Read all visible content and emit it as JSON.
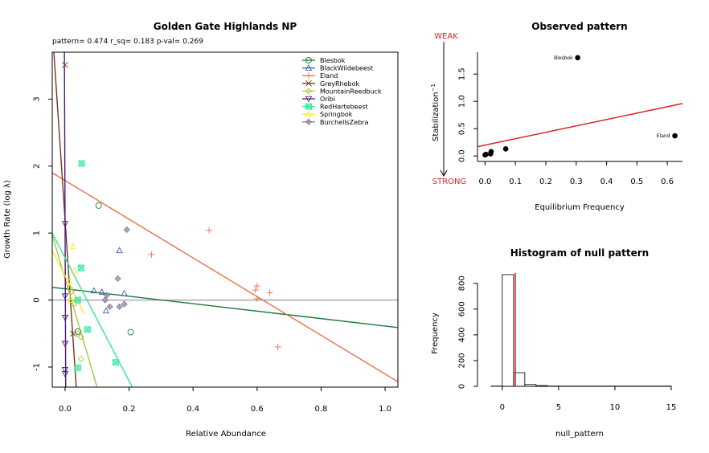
{
  "chart_data": [
    {
      "type": "scatter",
      "title": "Golden Gate Highlands NP",
      "subtitle": "pattern= 0.474 r_sq= 0.183 p-val= 0.269",
      "xlabel": "Relative Abundance",
      "ylabel": "Growth Rate (log  λ)",
      "xlim": [
        -0.04,
        1.04
      ],
      "ylim": [
        -1.3,
        3.7
      ],
      "xticks": [
        "0.0",
        "0.2",
        "0.4",
        "0.6",
        "0.8",
        "1.0"
      ],
      "yticks": [
        "-1",
        "0",
        "1",
        "2",
        "3"
      ],
      "xtick_values": [
        0,
        0.2,
        0.4,
        0.6,
        0.8,
        1.0
      ],
      "ytick_values": [
        -1,
        0,
        1,
        2,
        3
      ],
      "reference_line_y": 0,
      "legend_position": "top-right",
      "series": [
        {
          "name": "Blesbok",
          "color": "#1a7a3a",
          "marker": "circle",
          "points": [
            [
              0.105,
              1.41
            ],
            [
              0.205,
              -0.48
            ],
            [
              0.04,
              -0.47
            ]
          ],
          "fit": [
            [
              -0.04,
              0.19
            ],
            [
              1.04,
              -0.41
            ]
          ]
        },
        {
          "name": "BlackWildebeest",
          "color": "#3a5fb0",
          "marker": "triangle",
          "points": [
            [
              0.17,
              0.74
            ],
            [
              0.09,
              0.14
            ],
            [
              0.115,
              0.12
            ],
            [
              0.128,
              -0.16
            ],
            [
              0.185,
              0.1
            ]
          ],
          "fit": null
        },
        {
          "name": "Eland",
          "color": "#e8704a",
          "marker": "plus",
          "points": [
            [
              0.45,
              1.04
            ],
            [
              0.27,
              0.68
            ],
            [
              0.6,
              0.21
            ],
            [
              0.595,
              0.15
            ],
            [
              0.64,
              0.11
            ],
            [
              0.6,
              0.02
            ],
            [
              0.665,
              -0.7
            ]
          ],
          "fit": [
            [
              -0.04,
              1.9
            ],
            [
              1.04,
              -1.22
            ]
          ]
        },
        {
          "name": "GreyRhebok",
          "color": "#7a3320",
          "marker": "x",
          "points": [
            [
              0.0,
              3.51
            ],
            [
              0.025,
              -0.5
            ]
          ],
          "fit": [
            [
              -0.035,
              3.7
            ],
            [
              0.035,
              -1.3
            ]
          ]
        },
        {
          "name": "MountainReedbuck",
          "color": "#a8c840",
          "marker": "diamond",
          "points": [
            [
              0.02,
              0.12
            ],
            [
              0.03,
              -0.05
            ],
            [
              0.04,
              -0.5
            ],
            [
              0.05,
              -0.55
            ],
            [
              0.05,
              -0.88
            ],
            [
              0.015,
              0.18
            ]
          ],
          "fit": [
            [
              -0.04,
              0.97
            ],
            [
              0.1,
              -1.3
            ]
          ]
        },
        {
          "name": "Oribi",
          "color": "#4a1a7a",
          "marker": "triangle-down",
          "points": [
            [
              0.0,
              1.14
            ],
            [
              0.0,
              0.06
            ],
            [
              0.0,
              -0.26
            ],
            [
              0.0,
              -0.65
            ],
            [
              0.0,
              -1.04
            ],
            [
              0.0,
              -1.1
            ]
          ],
          "fit": [
            [
              -0.002,
              3.7
            ],
            [
              0.002,
              -1.3
            ]
          ]
        },
        {
          "name": "RedHartebeest",
          "color": "#2ee89a",
          "marker": "square-x",
          "points": [
            [
              0.052,
              2.04
            ],
            [
              0.05,
              0.48
            ],
            [
              0.04,
              0.0
            ],
            [
              0.07,
              -0.44
            ],
            [
              0.04,
              -1.01
            ],
            [
              0.158,
              -0.93
            ]
          ],
          "fit": [
            [
              -0.04,
              1.0
            ],
            [
              0.21,
              -1.3
            ]
          ]
        },
        {
          "name": "Springbok",
          "color": "#f0e840",
          "marker": "triangle",
          "points": [
            [
              0.025,
              0.8
            ],
            [
              0.03,
              0.44
            ],
            [
              0.02,
              0.0
            ],
            [
              0.015,
              0.28
            ]
          ],
          "fit": [
            [
              -0.04,
              0.74
            ],
            [
              0.06,
              -0.2
            ]
          ]
        },
        {
          "name": "BurchellsZebra",
          "color": "#8a7a9a",
          "marker": "diamond-plus",
          "points": [
            [
              0.193,
              1.05
            ],
            [
              0.165,
              0.32
            ],
            [
              0.13,
              0.07
            ],
            [
              0.14,
              -0.1
            ],
            [
              0.17,
              -0.1
            ],
            [
              0.185,
              -0.06
            ],
            [
              0.125,
              0.0
            ]
          ],
          "fit": null
        }
      ]
    },
    {
      "type": "scatter",
      "title": "Observed pattern",
      "xlabel": "Equilibrium Frequency",
      "ylabel": "Stabilization",
      "ylabel_superscript": "−1",
      "xlim": [
        -0.025,
        0.65
      ],
      "ylim": [
        -0.1,
        1.9
      ],
      "xticks": [
        "0.0",
        "0.1",
        "0.2",
        "0.3",
        "0.4",
        "0.5",
        "0.6"
      ],
      "xtick_values": [
        0,
        0.1,
        0.2,
        0.3,
        0.4,
        0.5,
        0.6
      ],
      "yticks": [
        "0.0",
        "0.5",
        "1.0",
        "1.5"
      ],
      "ytick_values": [
        0,
        0.5,
        1.0,
        1.5
      ],
      "weak_label": "WEAK",
      "strong_label": "STRONG",
      "points": [
        {
          "x": 0.305,
          "y": 1.8,
          "label": "Blesbok"
        },
        {
          "x": 0.625,
          "y": 0.37,
          "label": "Eland"
        },
        {
          "x": 0.068,
          "y": 0.13,
          "label": ""
        },
        {
          "x": 0.02,
          "y": 0.08,
          "label": ""
        },
        {
          "x": 0.018,
          "y": 0.04,
          "label": ""
        },
        {
          "x": 0.003,
          "y": 0.03,
          "label": ""
        },
        {
          "x": 0.0,
          "y": 0.02,
          "label": ""
        }
      ],
      "fit": [
        [
          -0.025,
          0.17
        ],
        [
          0.65,
          0.96
        ]
      ],
      "fit_color": "#dd2222"
    },
    {
      "type": "histogram",
      "title": "Histogram of null pattern",
      "xlabel": "null_pattern",
      "ylabel": "Frequency",
      "xlim": [
        -2.2,
        16
      ],
      "ylim": [
        0,
        880
      ],
      "xticks": [
        "0",
        "5",
        "10",
        "15"
      ],
      "xtick_values": [
        0,
        5,
        10,
        15
      ],
      "yticks": [
        "0",
        "200",
        "400",
        "600",
        "800"
      ],
      "ytick_values": [
        0,
        200,
        400,
        600,
        800
      ],
      "bins": [
        {
          "from": -1,
          "to": 0,
          "count": 2
        },
        {
          "from": 0,
          "to": 1,
          "count": 868
        },
        {
          "from": 1,
          "to": 2,
          "count": 106
        },
        {
          "from": 2,
          "to": 3,
          "count": 14
        },
        {
          "from": 3,
          "to": 4,
          "count": 6
        },
        {
          "from": 4,
          "to": 15,
          "count": 2
        }
      ],
      "observed_value": 1.15,
      "observed_color": "#dd2222"
    }
  ]
}
